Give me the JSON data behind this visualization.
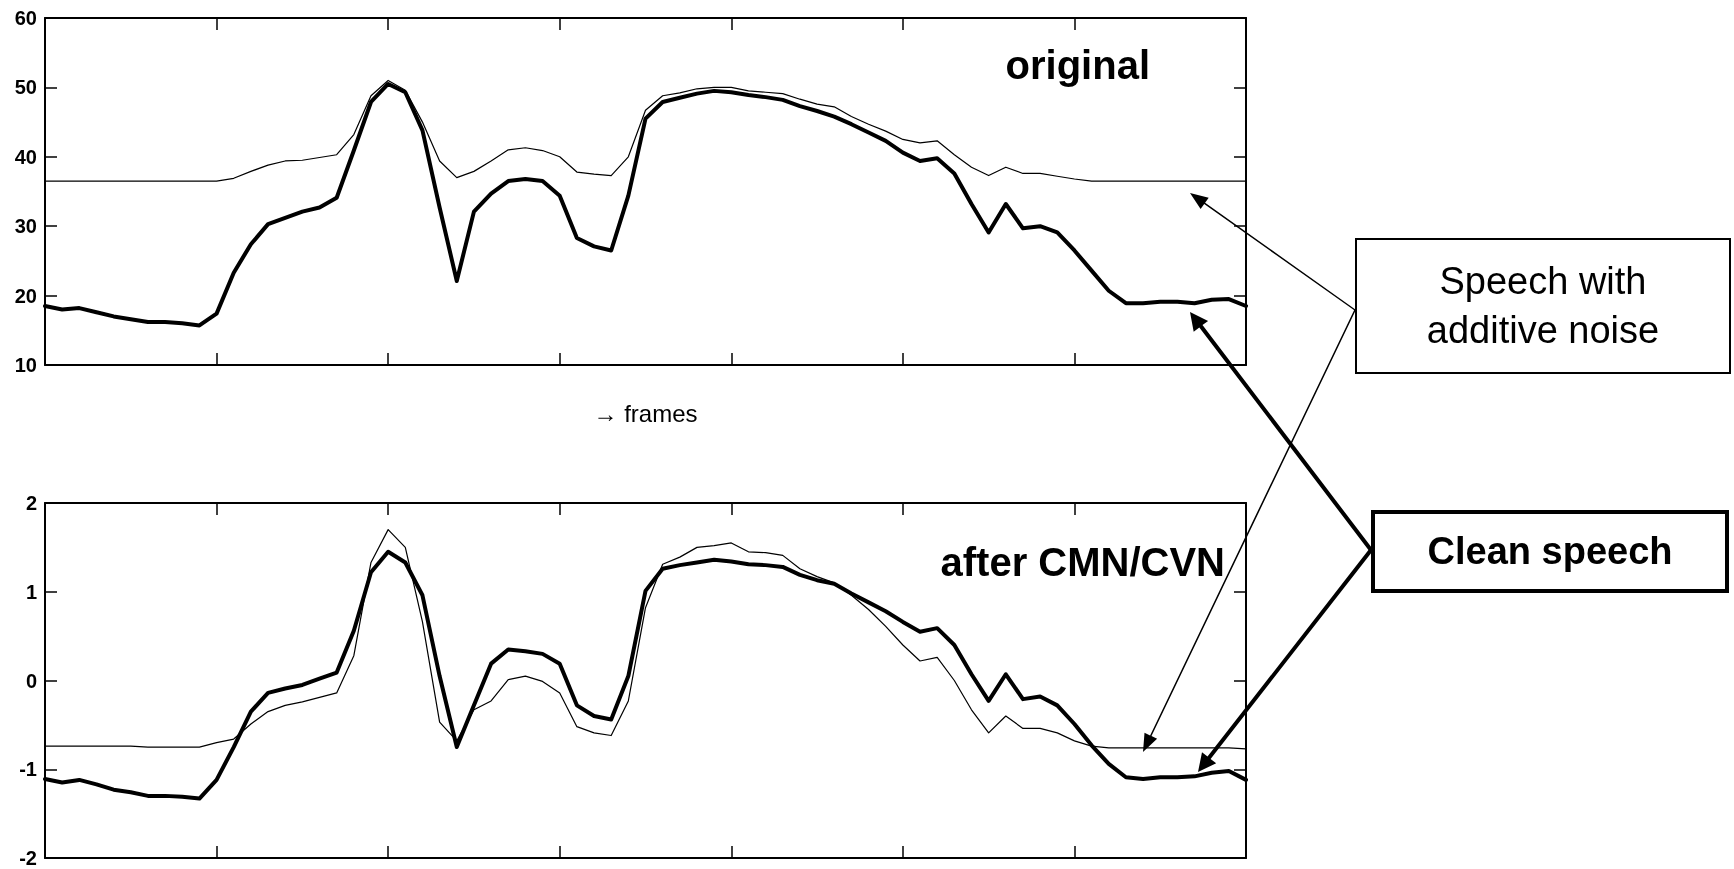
{
  "chart_data": [
    {
      "type": "line",
      "title": "original",
      "xlabel": "→ frames",
      "annotations": [
        "Speech with additive noise",
        "Clean speech"
      ],
      "categories": [
        null,
        null,
        null,
        null,
        null,
        null,
        null,
        null,
        null,
        null,
        null,
        null,
        null,
        null,
        null,
        null,
        null,
        null,
        null,
        null,
        null,
        null,
        null,
        null,
        null,
        null,
        null,
        null,
        null,
        null,
        null,
        null,
        null,
        null,
        null,
        null,
        null,
        null,
        null,
        null,
        null,
        null,
        null,
        null,
        null,
        null,
        null,
        null,
        null,
        null,
        null,
        null,
        null,
        null,
        null,
        null,
        null,
        null,
        null,
        null,
        null,
        null,
        null,
        null,
        null,
        null,
        null,
        null,
        null,
        null,
        null
      ],
      "series": [
        {
          "color": "#000000",
          "values": [
            36.5,
            36.5,
            36.5,
            36.5,
            36.5,
            36.5,
            36.5,
            36.5,
            36.5,
            36.5,
            36.5,
            36.9,
            37.9,
            38.8,
            39.4,
            39.5,
            39.9,
            40.3,
            43.2,
            48.8,
            51.0,
            49.6,
            45.0,
            39.4,
            37.0,
            37.9,
            39.4,
            41.0,
            41.3,
            40.9,
            40.0,
            37.8,
            37.5,
            37.3,
            40.0,
            46.7,
            48.8,
            49.2,
            49.8,
            50.0,
            50.0,
            49.5,
            49.3,
            49.1,
            48.3,
            47.6,
            47.2,
            45.8,
            44.7,
            43.7,
            42.5,
            42.0,
            42.3,
            40.3,
            38.5,
            37.3,
            38.5,
            37.6,
            37.6,
            37.2,
            36.8,
            36.5,
            36.5,
            36.5,
            36.5,
            36.5,
            36.5,
            36.5,
            36.5,
            36.5,
            36.5
          ]
        },
        {
          "color": "#000000",
          "values": [
            18.5,
            18.0,
            18.2,
            17.6,
            17.0,
            16.6,
            16.2,
            16.2,
            16.0,
            15.7,
            17.4,
            23.3,
            27.4,
            30.3,
            31.2,
            32.1,
            32.7,
            34.1,
            40.9,
            47.9,
            50.5,
            49.3,
            43.8,
            32.7,
            22.1,
            32.1,
            34.7,
            36.5,
            36.8,
            36.5,
            34.4,
            28.3,
            27.1,
            26.5,
            34.4,
            45.5,
            47.9,
            48.5,
            49.1,
            49.5,
            49.3,
            48.9,
            48.6,
            48.2,
            47.3,
            46.6,
            45.8,
            44.7,
            43.5,
            42.3,
            40.6,
            39.4,
            39.8,
            37.6,
            33.2,
            29.1,
            33.2,
            29.7,
            30.0,
            29.1,
            26.5,
            23.6,
            20.7,
            18.9,
            18.9,
            19.1,
            19.1,
            18.9,
            19.4,
            19.5,
            18.5
          ]
        }
      ],
      "ylim": [
        10,
        60
      ],
      "yticks": [
        10,
        20,
        30,
        40,
        50,
        60
      ],
      "grid": false,
      "marker": "none",
      "tick_labels": "y"
    },
    {
      "type": "line",
      "title": "after CMN/CVN",
      "categories": [
        null,
        null,
        null,
        null,
        null,
        null,
        null,
        null,
        null,
        null,
        null,
        null,
        null,
        null,
        null,
        null,
        null,
        null,
        null,
        null,
        null,
        null,
        null,
        null,
        null,
        null,
        null,
        null,
        null,
        null,
        null,
        null,
        null,
        null,
        null,
        null,
        null,
        null,
        null,
        null,
        null,
        null,
        null,
        null,
        null,
        null,
        null,
        null,
        null,
        null,
        null,
        null,
        null,
        null,
        null,
        null,
        null,
        null,
        null,
        null,
        null,
        null,
        null,
        null,
        null,
        null,
        null,
        null,
        null,
        null,
        null
      ],
      "series": [
        {
          "color": "#000000",
          "values": [
            -0.74,
            -0.74,
            -0.74,
            -0.74,
            -0.74,
            -0.74,
            -0.75,
            -0.75,
            -0.75,
            -0.75,
            -0.7,
            -0.66,
            -0.49,
            -0.35,
            -0.28,
            -0.24,
            -0.19,
            -0.14,
            0.28,
            1.33,
            1.7,
            1.5,
            0.66,
            -0.47,
            -0.68,
            -0.33,
            -0.23,
            0.01,
            0.05,
            -0.01,
            -0.14,
            -0.52,
            -0.59,
            -0.62,
            -0.23,
            0.82,
            1.31,
            1.39,
            1.5,
            1.52,
            1.55,
            1.45,
            1.44,
            1.41,
            1.26,
            1.17,
            1.1,
            0.96,
            0.8,
            0.61,
            0.4,
            0.22,
            0.26,
            0.0,
            -0.33,
            -0.59,
            -0.4,
            -0.54,
            -0.54,
            -0.59,
            -0.68,
            -0.74,
            -0.76,
            -0.76,
            -0.76,
            -0.76,
            -0.76,
            -0.76,
            -0.76,
            -0.76,
            -0.77
          ]
        },
        {
          "color": "#000000",
          "values": [
            -1.11,
            -1.15,
            -1.12,
            -1.17,
            -1.23,
            -1.26,
            -1.3,
            -1.3,
            -1.31,
            -1.33,
            -1.12,
            -0.75,
            -0.35,
            -0.14,
            -0.09,
            -0.05,
            0.02,
            0.09,
            0.56,
            1.22,
            1.45,
            1.33,
            0.96,
            0.05,
            -0.75,
            -0.28,
            0.19,
            0.35,
            0.33,
            0.3,
            0.19,
            -0.28,
            -0.4,
            -0.44,
            0.05,
            1.01,
            1.26,
            1.3,
            1.33,
            1.36,
            1.34,
            1.31,
            1.3,
            1.28,
            1.19,
            1.13,
            1.09,
            0.98,
            0.88,
            0.78,
            0.66,
            0.55,
            0.59,
            0.4,
            0.07,
            -0.23,
            0.07,
            -0.21,
            -0.18,
            -0.28,
            -0.49,
            -0.73,
            -0.94,
            -1.09,
            -1.11,
            -1.09,
            -1.09,
            -1.08,
            -1.04,
            -1.02,
            -1.12
          ]
        }
      ],
      "ylim": [
        -2,
        2
      ],
      "yticks": [
        -2,
        -1,
        0,
        1,
        2
      ],
      "grid": false,
      "marker": "none",
      "tick_labels": "y"
    }
  ]
}
